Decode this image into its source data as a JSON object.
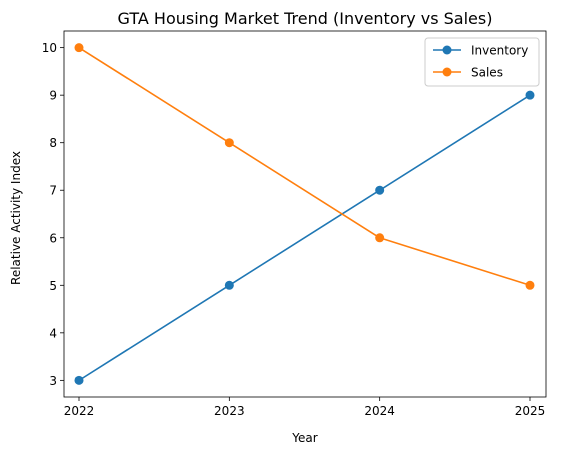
{
  "chart_data": {
    "type": "line",
    "title": "GTA Housing Market Trend (Inventory vs Sales)",
    "xlabel": "Year",
    "ylabel": "Relative Activity Index",
    "x": [
      2022,
      2023,
      2024,
      2025
    ],
    "x_tick_labels": [
      "2022",
      "2023",
      "2024",
      "2025"
    ],
    "y_ticks": [
      3,
      4,
      5,
      6,
      7,
      8,
      9,
      10
    ],
    "ylim": [
      2.65,
      10.35
    ],
    "grid": false,
    "legend": "top-right",
    "marker": "circle",
    "series": [
      {
        "name": "Inventory",
        "values": [
          3,
          5,
          7,
          9
        ],
        "color": "#1f77b4"
      },
      {
        "name": "Sales",
        "values": [
          10,
          8,
          6,
          5
        ],
        "color": "#ff7f0e"
      }
    ]
  }
}
